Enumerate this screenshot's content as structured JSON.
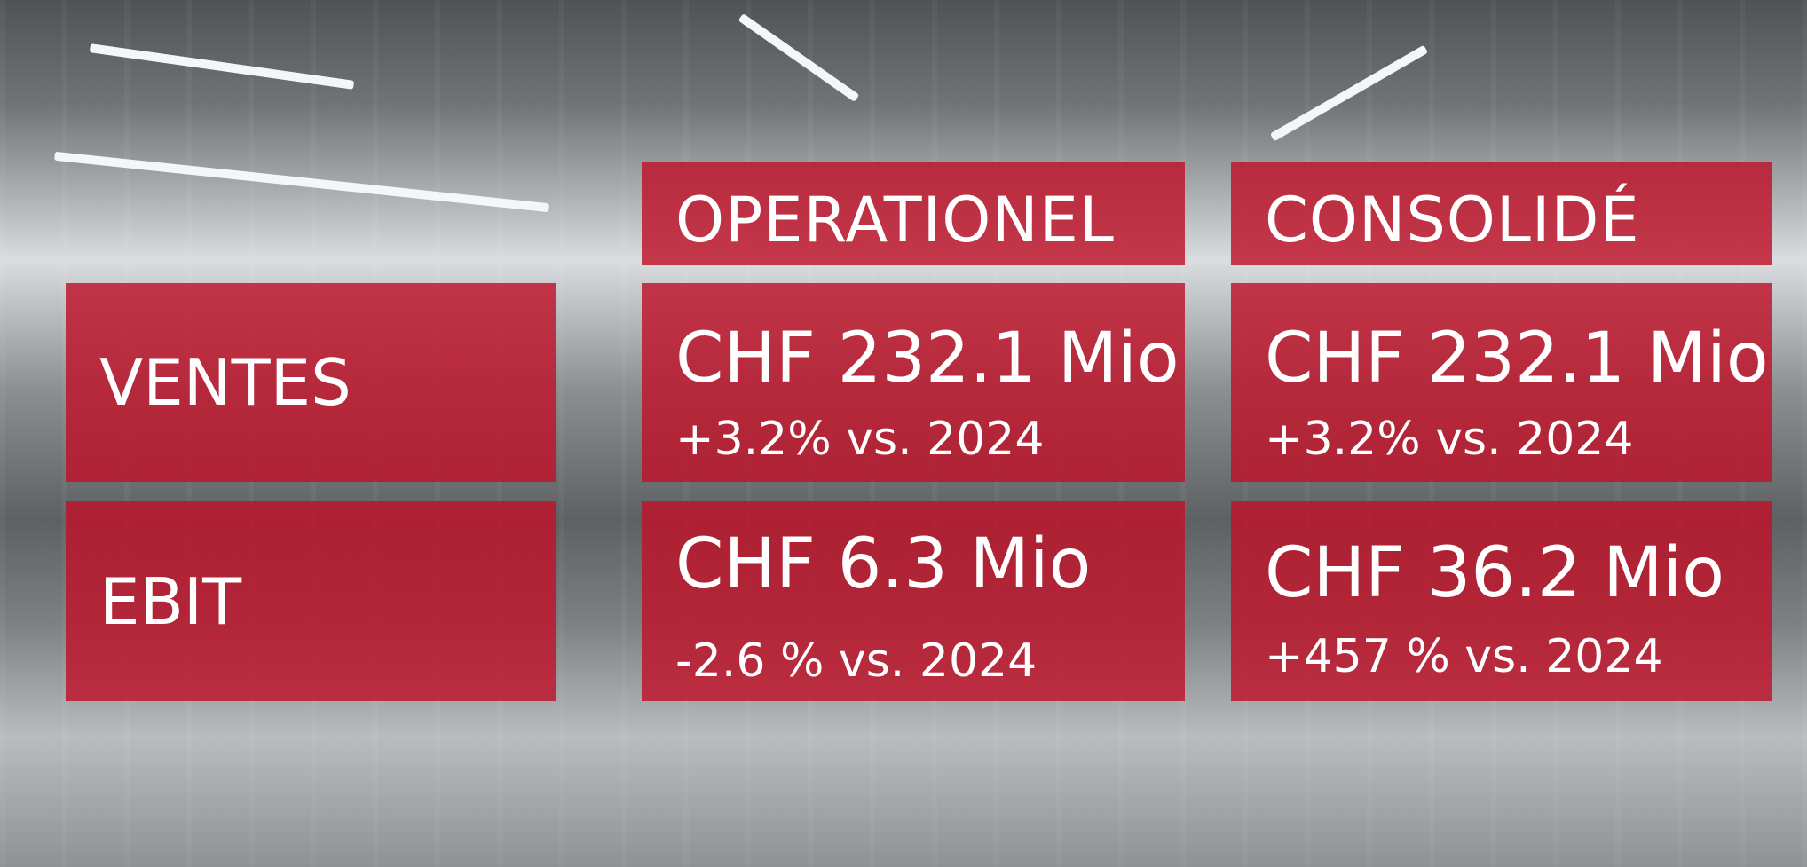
{
  "columns": [
    "OPERATIONEL",
    "CONSOLIDÉ"
  ],
  "rows": [
    {
      "label": "VENTES",
      "cells": [
        {
          "value": "CHF 232.1 Mio",
          "change": "+3.2% vs. 2024"
        },
        {
          "value": "CHF 232.1 Mio",
          "change": "+3.2% vs. 2024"
        }
      ]
    },
    {
      "label": "EBIT",
      "cells": [
        {
          "value": "CHF 6.3 Mio",
          "change": "-2.6 % vs. 2024"
        },
        {
          "value": "CHF 36.2 Mio",
          "change": "+457 % vs. 2024"
        }
      ]
    }
  ]
}
